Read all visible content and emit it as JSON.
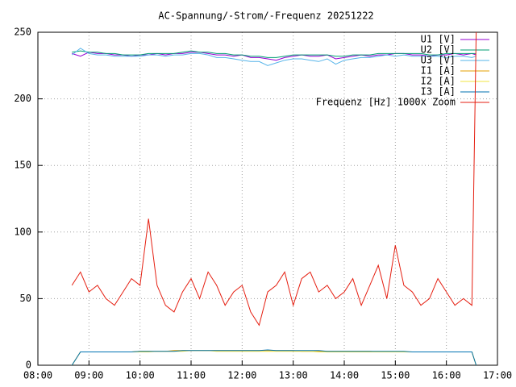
{
  "chart_data": {
    "type": "line",
    "title": "AC-Spannung/-Strom/-Frequenz 20251222",
    "x": [
      "08:40",
      "08:50",
      "09:00",
      "09:10",
      "09:20",
      "09:30",
      "09:40",
      "09:50",
      "10:00",
      "10:10",
      "10:20",
      "10:30",
      "10:40",
      "10:50",
      "11:00",
      "11:10",
      "11:20",
      "11:30",
      "11:40",
      "11:50",
      "12:00",
      "12:10",
      "12:20",
      "12:30",
      "12:40",
      "12:50",
      "13:00",
      "13:10",
      "13:20",
      "13:30",
      "13:40",
      "13:50",
      "14:00",
      "14:10",
      "14:20",
      "14:30",
      "14:40",
      "14:50",
      "15:00",
      "15:10",
      "15:20",
      "15:30",
      "15:40",
      "15:50",
      "16:00",
      "16:10",
      "16:20",
      "16:30",
      "16:35"
    ],
    "series": [
      {
        "name": "U1 [V]",
        "color": "#9400d3",
        "values": [
          234,
          232,
          235,
          234,
          234,
          233,
          233,
          232,
          233,
          233,
          234,
          233,
          234,
          234,
          235,
          235,
          234,
          233,
          233,
          232,
          233,
          231,
          231,
          230,
          229,
          231,
          232,
          233,
          232,
          232,
          233,
          230,
          231,
          232,
          233,
          232,
          233,
          233,
          234,
          234,
          233,
          233,
          232,
          233,
          233,
          234,
          233,
          234,
          233
        ]
      },
      {
        "name": "U2 [V]",
        "color": "#009e73",
        "values": [
          235,
          236,
          235,
          235,
          234,
          234,
          233,
          233,
          233,
          234,
          234,
          234,
          234,
          235,
          236,
          235,
          235,
          234,
          234,
          233,
          233,
          232,
          232,
          231,
          231,
          232,
          233,
          233,
          233,
          233,
          233,
          232,
          232,
          233,
          233,
          233,
          234,
          234,
          234,
          234,
          234,
          234,
          233,
          233,
          234,
          234,
          234,
          234,
          234
        ]
      },
      {
        "name": "U3 [V]",
        "color": "#56b4e9",
        "values": [
          233,
          238,
          234,
          233,
          233,
          232,
          232,
          232,
          232,
          233,
          233,
          232,
          233,
          233,
          234,
          234,
          233,
          231,
          231,
          230,
          229,
          228,
          228,
          225,
          227,
          229,
          230,
          230,
          229,
          228,
          230,
          226,
          229,
          230,
          231,
          231,
          232,
          233,
          232,
          233,
          232,
          232,
          232,
          232,
          231,
          232,
          232,
          231,
          232
        ]
      },
      {
        "name": "I1 [A]",
        "color": "#e69f00",
        "values": [
          0,
          10,
          10,
          10,
          10,
          10,
          10,
          10,
          10.5,
          10.5,
          10.5,
          10.5,
          11,
          11,
          11,
          11,
          11,
          11,
          11,
          11,
          11,
          11,
          11,
          11,
          11,
          11,
          11,
          10.5,
          10.5,
          10.5,
          10.5,
          10.5,
          10.5,
          10.5,
          10.5,
          10.5,
          10,
          10,
          10,
          10,
          10,
          10,
          10,
          10,
          10,
          10,
          10,
          10,
          0
        ]
      },
      {
        "name": "I2 [A]",
        "color": "#f0e442",
        "values": [
          0,
          10,
          10,
          10,
          10,
          10,
          10,
          10,
          10,
          10,
          10.5,
          10.5,
          10.5,
          10.5,
          11,
          11,
          11,
          10.5,
          10.5,
          10.5,
          10.5,
          10.5,
          10.5,
          10.5,
          10.5,
          10.5,
          10.5,
          10.5,
          10.5,
          10,
          10,
          10,
          10,
          10,
          10,
          10,
          10,
          10,
          10,
          10,
          10,
          10,
          10,
          10,
          10,
          10,
          10,
          10,
          0
        ]
      },
      {
        "name": "I3 [A]",
        "color": "#0072b2",
        "values": [
          0,
          10,
          10,
          10,
          10,
          10,
          10,
          10,
          10.5,
          10.5,
          10.5,
          10.5,
          10.5,
          11,
          11,
          11,
          11,
          11,
          11,
          11,
          11,
          11,
          11,
          11.5,
          11,
          11,
          11,
          11,
          11,
          11,
          10.5,
          10.5,
          10.5,
          10.5,
          10.5,
          10.5,
          10.5,
          10.5,
          10.5,
          10.5,
          10,
          10,
          10,
          10,
          10,
          10,
          10,
          10,
          0
        ]
      },
      {
        "name": "Frequenz [Hz] 1000x Zoom",
        "color": "#e51e10",
        "values": [
          60,
          70,
          55,
          60,
          50,
          45,
          55,
          65,
          60,
          110,
          60,
          45,
          40,
          55,
          65,
          50,
          70,
          60,
          45,
          55,
          60,
          40,
          30,
          55,
          60,
          70,
          45,
          65,
          70,
          55,
          60,
          50,
          55,
          65,
          45,
          60,
          75,
          50,
          90,
          60,
          55,
          45,
          50,
          65,
          55,
          45,
          50,
          45,
          250
        ]
      }
    ],
    "xlim": [
      "08:00",
      "17:00"
    ],
    "xticks": [
      "08:00",
      "09:00",
      "10:00",
      "11:00",
      "12:00",
      "13:00",
      "14:00",
      "15:00",
      "16:00",
      "17:00"
    ],
    "ylim": [
      0,
      250
    ],
    "yticks": [
      0,
      50,
      100,
      150,
      200,
      250
    ],
    "grid": true,
    "legend": "top-right"
  }
}
